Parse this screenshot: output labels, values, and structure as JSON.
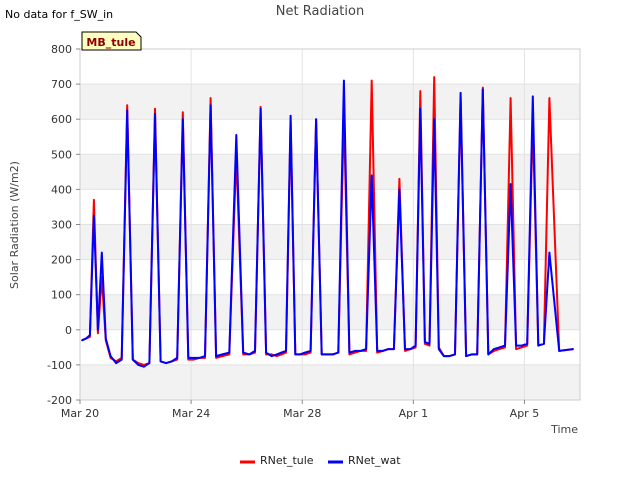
{
  "note_text": "No data for f_SW_in",
  "badge_text": "MB_tule",
  "chart_data": {
    "type": "line",
    "title": "Net Radiation",
    "xlabel": "Time",
    "ylabel": "Solar Radiation (W/m2)",
    "ylim": [
      -200,
      800
    ],
    "xlim_days": [
      "2023-03-20",
      "2023-04-07"
    ],
    "y_ticks": [
      -200,
      -100,
      0,
      100,
      200,
      300,
      400,
      500,
      600,
      700,
      800
    ],
    "x_ticks": [
      {
        "date": "2023-03-20",
        "label": "Mar 20"
      },
      {
        "date": "2023-03-24",
        "label": "Mar 24"
      },
      {
        "date": "2023-03-28",
        "label": "Mar 28"
      },
      {
        "date": "2023-04-01",
        "label": "Apr 1"
      },
      {
        "date": "2023-04-05",
        "label": "Apr 5"
      }
    ],
    "grid": true,
    "legend_position": "bottom-center",
    "x": [
      "2023-03-20",
      "2023-03-20",
      "2023-03-20",
      "2023-03-20",
      "2023-03-20",
      "2023-03-20",
      "2023-03-20",
      "2023-03-21",
      "2023-03-21",
      "2023-03-21",
      "2023-03-21",
      "2023-03-21",
      "2023-03-22",
      "2023-03-22",
      "2023-03-22",
      "2023-03-22",
      "2023-03-22",
      "2023-03-23",
      "2023-03-23",
      "2023-03-23",
      "2023-03-23",
      "2023-03-23",
      "2023-03-24",
      "2023-03-24",
      "2023-03-24",
      "2023-03-24",
      "2023-03-24",
      "2023-03-25",
      "2023-03-25",
      "2023-03-25",
      "2023-03-25",
      "2023-03-26",
      "2023-03-26",
      "2023-03-26",
      "2023-03-26",
      "2023-03-26",
      "2023-03-27",
      "2023-03-27",
      "2023-03-27",
      "2023-03-27",
      "2023-03-27",
      "2023-03-27",
      "2023-03-28",
      "2023-03-28",
      "2023-03-28",
      "2023-03-28",
      "2023-03-28",
      "2023-03-29",
      "2023-03-29",
      "2023-03-29",
      "2023-03-29",
      "2023-03-29",
      "2023-03-30",
      "2023-03-30",
      "2023-03-30",
      "2023-03-30",
      "2023-03-30",
      "2023-03-31",
      "2023-03-31",
      "2023-03-31",
      "2023-03-31",
      "2023-03-31",
      "2023-04-01",
      "2023-04-01",
      "2023-04-01",
      "2023-04-01",
      "2023-04-01",
      "2023-04-01",
      "2023-04-02",
      "2023-04-02",
      "2023-04-02",
      "2023-04-02",
      "2023-04-02",
      "2023-04-03",
      "2023-04-03",
      "2023-04-03",
      "2023-04-03",
      "2023-04-03",
      "2023-04-04",
      "2023-04-04",
      "2023-04-04",
      "2023-04-04",
      "2023-04-04",
      "2023-04-05",
      "2023-04-05",
      "2023-04-05",
      "2023-04-05",
      "2023-04-05",
      "2023-04-06",
      "2023-04-06"
    ],
    "series": [
      {
        "name": "RNet_tule",
        "color": "#ff0000",
        "values": [
          -30,
          -25,
          -20,
          370,
          -10,
          150,
          -30,
          -80,
          -90,
          -80,
          640,
          -85,
          -95,
          -100,
          -95,
          630,
          -90,
          -95,
          -90,
          -85,
          620,
          -85,
          -85,
          -80,
          -80,
          660,
          -80,
          -75,
          -70,
          500,
          -70,
          -70,
          -65,
          635,
          -70,
          -70,
          -75,
          -70,
          -65,
          595,
          -70,
          -70,
          -70,
          -65,
          600,
          -70,
          -70,
          -70,
          -65,
          620,
          -70,
          -65,
          -60,
          -60,
          710,
          -65,
          -60,
          -55,
          -55,
          430,
          -60,
          -55,
          -50,
          680,
          -40,
          -45,
          720,
          -50,
          -75,
          -75,
          -70,
          660,
          -75,
          -70,
          -70,
          690,
          -70,
          -60,
          -55,
          -50,
          660,
          -55,
          -50,
          -45,
          600,
          -45,
          -40,
          660,
          -60,
          -55
        ],
        "label_text": "RNet_tule"
      },
      {
        "name": "RNet_wat",
        "color": "#0000ff",
        "values": [
          -30,
          -25,
          -15,
          325,
          0,
          220,
          -25,
          -75,
          -95,
          -85,
          625,
          -85,
          -100,
          -105,
          -95,
          615,
          -90,
          -95,
          -90,
          -80,
          600,
          -80,
          -80,
          -80,
          -75,
          640,
          -75,
          -70,
          -65,
          555,
          -65,
          -70,
          -60,
          630,
          -65,
          -75,
          -70,
          -65,
          -60,
          610,
          -70,
          -70,
          -65,
          -60,
          600,
          -70,
          -70,
          -70,
          -65,
          710,
          -65,
          -60,
          -60,
          -55,
          440,
          -60,
          -60,
          -55,
          -55,
          400,
          -55,
          -55,
          -45,
          630,
          -35,
          -40,
          600,
          -55,
          -75,
          -75,
          -70,
          675,
          -75,
          -70,
          -70,
          685,
          -70,
          -55,
          -50,
          -45,
          415,
          -45,
          -45,
          -40,
          665,
          -45,
          -40,
          220,
          -60,
          -55
        ],
        "label_text": "RNet_wat"
      }
    ]
  }
}
